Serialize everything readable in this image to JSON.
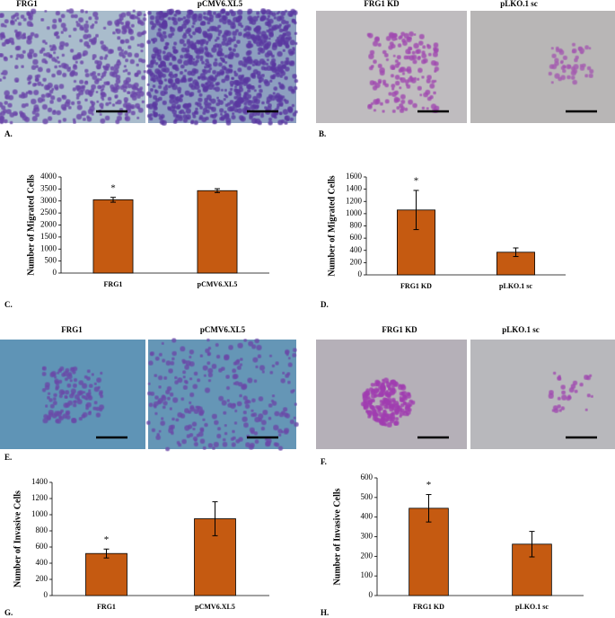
{
  "panels": [
    {
      "letter": "A.",
      "images": [
        "FRG1",
        "pCMV6.XL5"
      ]
    },
    {
      "letter": "B.",
      "images": [
        "FRG1 KD",
        "pLKO.1 sc"
      ]
    },
    {
      "letter": "E.",
      "images": [
        "FRG1",
        "pCMV6.XL5"
      ]
    },
    {
      "letter": "F.",
      "images": [
        "FRG1 KD",
        "pLKO.1 sc"
      ]
    }
  ],
  "chart_data": [
    {
      "type": "bar",
      "letter": "C.",
      "ylabel": "Number of  Migrated Cells",
      "categories": [
        "FRG1",
        "pCMV6.XL5"
      ],
      "values": [
        3050,
        3430
      ],
      "errors": [
        100,
        80
      ],
      "annotations": [
        "*",
        null
      ],
      "ylim": [
        0,
        4000
      ],
      "yticks": [
        0,
        500,
        1000,
        1500,
        2000,
        2500,
        3000,
        3500,
        4000
      ],
      "color": "#c55a11"
    },
    {
      "type": "bar",
      "letter": "D.",
      "ylabel": "Number of  Migrated Cells",
      "categories": [
        "FRG1 KD",
        "pLKO.1 sc"
      ],
      "values": [
        1060,
        370
      ],
      "errors": [
        320,
        70
      ],
      "annotations": [
        "*",
        null
      ],
      "ylim": [
        0,
        1600
      ],
      "yticks": [
        0,
        200,
        400,
        600,
        800,
        1000,
        1200,
        1400,
        1600
      ],
      "color": "#c55a11"
    },
    {
      "type": "bar",
      "letter": "G.",
      "ylabel": "Number of Invasive Cells",
      "categories": [
        "FRG1",
        "pCMV6.XL5"
      ],
      "values": [
        520,
        950
      ],
      "errors": [
        55,
        210
      ],
      "annotations": [
        "*",
        null
      ],
      "ylim": [
        0,
        1400
      ],
      "yticks": [
        0,
        200,
        400,
        600,
        800,
        1000,
        1200,
        1400
      ],
      "color": "#c55a11"
    },
    {
      "type": "bar",
      "letter": "H.",
      "ylabel": "Number of Invasive Cells",
      "categories": [
        "FRG1 KD",
        "pLKO.1 sc"
      ],
      "values": [
        445,
        262
      ],
      "errors": [
        70,
        65
      ],
      "annotations": [
        "*",
        null
      ],
      "ylim": [
        0,
        600
      ],
      "yticks": [
        0,
        100,
        200,
        300,
        400,
        500,
        600
      ],
      "color": "#c55a11"
    }
  ]
}
